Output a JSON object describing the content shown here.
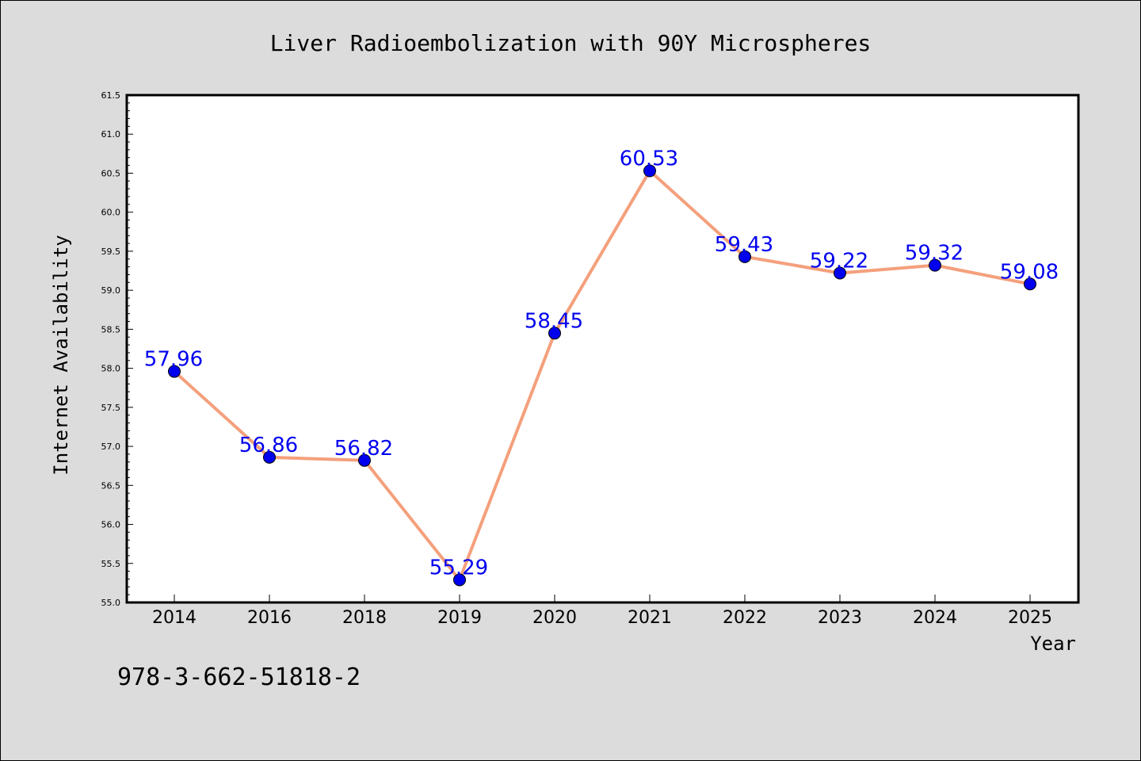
{
  "chart_data": {
    "type": "line",
    "title": "Liver Radioembolization with 90Y Microspheres",
    "xlabel": "Year",
    "ylabel": "Internet Availability",
    "categories": [
      "2014",
      "2016",
      "2018",
      "2019",
      "2020",
      "2021",
      "2022",
      "2023",
      "2024",
      "2025"
    ],
    "series": [
      {
        "values": [
          57.96,
          56.86,
          56.82,
          55.29,
          58.45,
          60.53,
          59.43,
          59.22,
          59.32,
          59.08
        ]
      }
    ],
    "data_labels": [
      "57.96",
      "56.86",
      "56.82",
      "55.29",
      "58.45",
      "60.53",
      "59.43",
      "59.22",
      "59.32",
      "59.08"
    ],
    "ylim": [
      55.0,
      61.5
    ],
    "yticks": [
      "55.0",
      "55.5",
      "56.0",
      "56.5",
      "57.0",
      "57.5",
      "58.0",
      "58.5",
      "59.0",
      "59.5",
      "60.0",
      "60.5",
      "61.0",
      "61.5"
    ],
    "grid": false,
    "legend": "none",
    "line_color": "#f4a07c",
    "marker_color": "#0000ee",
    "label_color": "#0000ee"
  },
  "footer_code": "978-3-662-51818-2"
}
